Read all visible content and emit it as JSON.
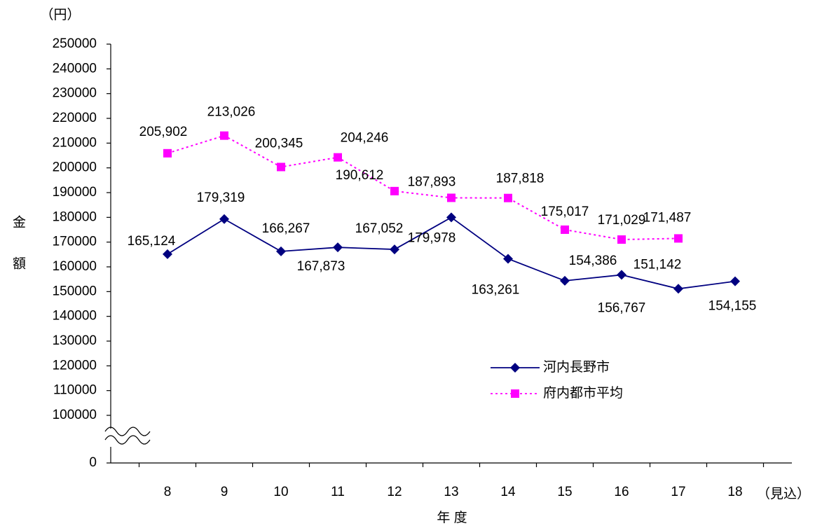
{
  "chart_data": {
    "type": "line",
    "unit_label": "（円）",
    "y_axis_label": "金額",
    "x_axis_label": "年 度",
    "annotation": "（見込）",
    "categories": [
      "8",
      "9",
      "10",
      "11",
      "12",
      "13",
      "14",
      "15",
      "16",
      "17",
      "18"
    ],
    "series": [
      {
        "name": "河内長野市",
        "color": "#000080",
        "marker": "diamond",
        "line_style": "solid",
        "values": [
          165124,
          179319,
          166267,
          167873,
          167052,
          179978,
          163261,
          154386,
          156767,
          151142,
          154155
        ],
        "value_labels": [
          "165,124",
          "179,319",
          "166,267",
          "167,873",
          "167,052",
          "179,978",
          "163,261",
          "154,386",
          "156,767",
          "151,142",
          "154,155"
        ]
      },
      {
        "name": "府内都市平均",
        "color": "#ff00ff",
        "marker": "square",
        "line_style": "dotted",
        "values": [
          205902,
          213026,
          200345,
          204246,
          190612,
          187893,
          187818,
          175017,
          171029,
          171487,
          null
        ],
        "value_labels": [
          "205,902",
          "213,026",
          "200,345",
          "204,246",
          "190,612",
          "187,893",
          "187,818",
          "175,017",
          "171,029",
          "171,487",
          null
        ]
      }
    ],
    "ylim": [
      0,
      250000
    ],
    "ybreak": [
      0,
      100000
    ],
    "yticks": [
      0,
      100000,
      110000,
      120000,
      130000,
      140000,
      150000,
      160000,
      170000,
      180000,
      190000,
      200000,
      210000,
      220000,
      230000,
      240000,
      250000
    ],
    "legend": "lower-right"
  }
}
